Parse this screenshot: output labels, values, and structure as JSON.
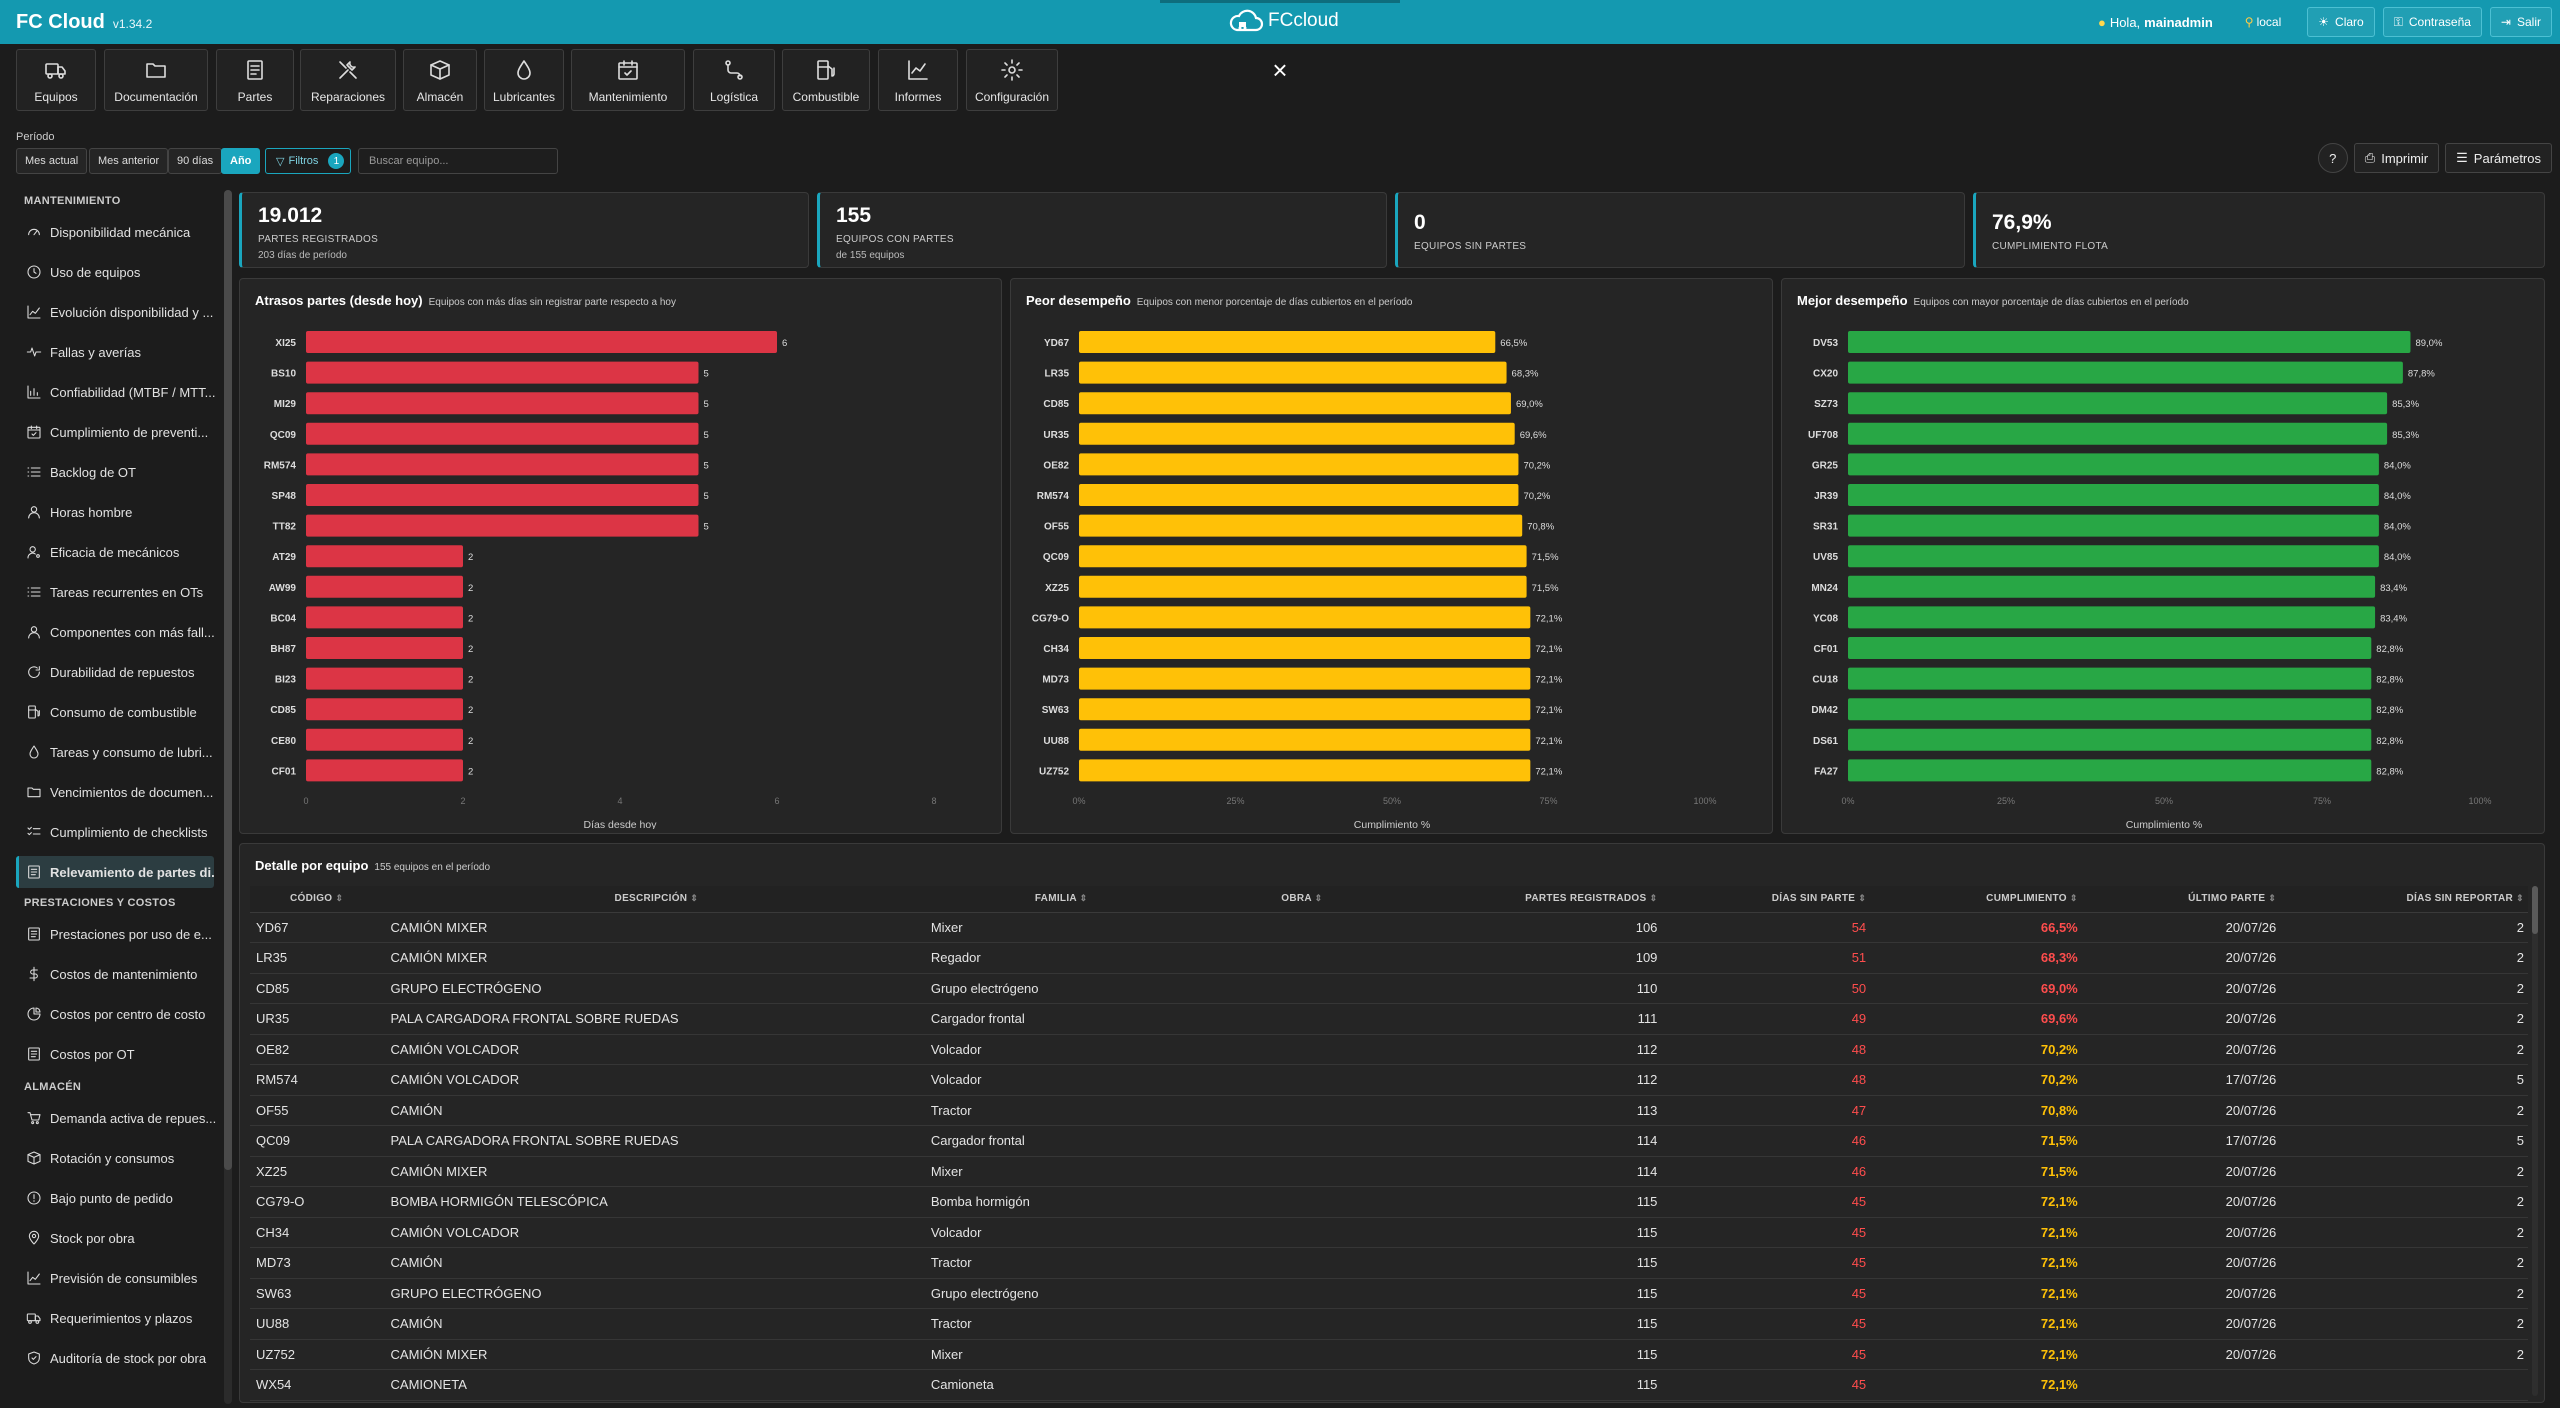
{
  "app": {
    "title": "FC Cloud",
    "version": "v1.34.2",
    "logo_text": "FCcloud",
    "greeting": "Hola,",
    "user": "mainadmin",
    "location": "local",
    "btn_theme": "Claro",
    "btn_password": "Contraseña",
    "btn_logout": "Salir"
  },
  "modules": [
    {
      "label": "Equipos",
      "icon": "truck-icon"
    },
    {
      "label": "Documentación",
      "icon": "folder-icon"
    },
    {
      "label": "Partes",
      "icon": "document-icon"
    },
    {
      "label": "Reparaciones",
      "icon": "tools-icon"
    },
    {
      "label": "Almacén",
      "icon": "box-icon"
    },
    {
      "label": "Lubricantes",
      "icon": "drop-icon"
    },
    {
      "label": "Mantenimiento",
      "icon": "calendar-check-icon"
    },
    {
      "label": "Logística",
      "icon": "route-icon"
    },
    {
      "label": "Combustible",
      "icon": "fuel-icon"
    },
    {
      "label": "Informes",
      "icon": "chart-line-icon"
    },
    {
      "label": "Configuración",
      "icon": "gear-icon"
    }
  ],
  "filters": {
    "period_label": "Período",
    "periods": [
      "Mes actual",
      "Mes anterior",
      "90 días",
      "Año"
    ],
    "active_period": "Año",
    "filters_label": "Filtros",
    "filters_count": "1",
    "search_placeholder": "Buscar equipo...",
    "help": "?",
    "print": "Imprimir",
    "params": "Parámetros"
  },
  "sidebar": [
    {
      "section": "MANTENIMIENTO",
      "items": [
        {
          "label": "Disponibilidad mecánica",
          "icon": "gauge-icon"
        },
        {
          "label": "Uso de equipos",
          "icon": "clock-icon"
        },
        {
          "label": "Evolución disponibilidad y ...",
          "icon": "trend-icon"
        },
        {
          "label": "Fallas y averías",
          "icon": "pulse-icon"
        },
        {
          "label": "Confiabilidad (MTBF / MTT...",
          "icon": "chart-icon"
        },
        {
          "label": "Cumplimiento de preventi...",
          "icon": "calendar-check-icon"
        },
        {
          "label": "Backlog de OT",
          "icon": "list-icon"
        },
        {
          "label": "Horas hombre",
          "icon": "user-icon"
        },
        {
          "label": "Eficacia de mecánicos",
          "icon": "user-gear-icon"
        },
        {
          "label": "Tareas recurrentes en OTs",
          "icon": "list-icon"
        },
        {
          "label": "Componentes con más fall...",
          "icon": "user-icon"
        },
        {
          "label": "Durabilidad de repuestos",
          "icon": "refresh-icon"
        },
        {
          "label": "Consumo de combustible",
          "icon": "fuel-icon"
        },
        {
          "label": "Tareas y consumo de lubri...",
          "icon": "drop-icon"
        },
        {
          "label": "Vencimientos de documen...",
          "icon": "folder-icon"
        },
        {
          "label": "Cumplimiento de checklists",
          "icon": "checklist-icon"
        },
        {
          "label": "Relevamiento de partes di...",
          "icon": "report-icon",
          "active": true
        }
      ]
    },
    {
      "section": "PRESTACIONES Y COSTOS",
      "items": [
        {
          "label": "Prestaciones por uso de e...",
          "icon": "report-icon"
        },
        {
          "label": "Costos de mantenimiento",
          "icon": "dollar-icon"
        },
        {
          "label": "Costos por centro de costo",
          "icon": "pie-icon"
        },
        {
          "label": "Costos por OT",
          "icon": "report-icon"
        }
      ]
    },
    {
      "section": "ALMACÉN",
      "items": [
        {
          "label": "Demanda activa de repues...",
          "icon": "cart-icon"
        },
        {
          "label": "Rotación y consumos",
          "icon": "box-icon"
        },
        {
          "label": "Bajo punto de pedido",
          "icon": "alert-icon"
        },
        {
          "label": "Stock por obra",
          "icon": "pin-icon"
        },
        {
          "label": "Previsión de consumibles",
          "icon": "trend-icon"
        },
        {
          "label": "Requerimientos y plazos",
          "icon": "truck-icon"
        },
        {
          "label": "Auditoría de stock por obra",
          "icon": "shield-icon"
        }
      ]
    }
  ],
  "kpis": [
    {
      "value": "19.012",
      "label": "PARTES REGISTRADOS",
      "sub": "203 días de período"
    },
    {
      "value": "155",
      "label": "EQUIPOS CON PARTES",
      "sub": "de 155 equipos"
    },
    {
      "value": "0",
      "label": "EQUIPOS SIN PARTES",
      "sub": ""
    },
    {
      "value": "76,9%",
      "label": "CUMPLIMIENTO FLOTA",
      "sub": ""
    }
  ],
  "chart_data": [
    {
      "type": "bar",
      "orientation": "horizontal",
      "title": "Atrasos partes (desde hoy)",
      "subtitle": "Equipos con más días sin registrar parte respecto a hoy",
      "xlabel": "Días desde hoy",
      "xlim": [
        0,
        8
      ],
      "xticks": [
        "0",
        "2",
        "4",
        "6",
        "8"
      ],
      "color": "#dc3545",
      "categories": [
        "XI25",
        "BS10",
        "MI29",
        "QC09",
        "RM574",
        "SP48",
        "TT82",
        "AT29",
        "AW99",
        "BC04",
        "BH87",
        "BI23",
        "CD85",
        "CE80",
        "CF01"
      ],
      "values": [
        6,
        5,
        5,
        5,
        5,
        5,
        5,
        2,
        2,
        2,
        2,
        2,
        2,
        2,
        2
      ],
      "labels": [
        "6",
        "5",
        "5",
        "5",
        "5",
        "5",
        "5",
        "2",
        "2",
        "2",
        "2",
        "2",
        "2",
        "2",
        "2"
      ]
    },
    {
      "type": "bar",
      "orientation": "horizontal",
      "title": "Peor desempeño",
      "subtitle": "Equipos con menor porcentaje de días cubiertos en el período",
      "xlabel": "Cumplimiento %",
      "xlim": [
        0,
        100
      ],
      "xticks": [
        "0%",
        "25%",
        "50%",
        "75%",
        "100%"
      ],
      "color": "#ffc107",
      "categories": [
        "YD67",
        "LR35",
        "CD85",
        "UR35",
        "OE82",
        "RM574",
        "OF55",
        "QC09",
        "XZ25",
        "CG79-O",
        "CH34",
        "MD73",
        "SW63",
        "UU88",
        "UZ752"
      ],
      "values": [
        66.5,
        68.3,
        69.0,
        69.6,
        70.2,
        70.2,
        70.8,
        71.5,
        71.5,
        72.1,
        72.1,
        72.1,
        72.1,
        72.1,
        72.1
      ],
      "labels": [
        "66,5%",
        "68,3%",
        "69,0%",
        "69,6%",
        "70,2%",
        "70,2%",
        "70,8%",
        "71,5%",
        "71,5%",
        "72,1%",
        "72,1%",
        "72,1%",
        "72,1%",
        "72,1%",
        "72,1%"
      ]
    },
    {
      "type": "bar",
      "orientation": "horizontal",
      "title": "Mejor desempeño",
      "subtitle": "Equipos con mayor porcentaje de días cubiertos en el período",
      "xlabel": "Cumplimiento %",
      "xlim": [
        0,
        100
      ],
      "xticks": [
        "0%",
        "25%",
        "50%",
        "75%",
        "100%"
      ],
      "color": "#28a745",
      "categories": [
        "DV53",
        "CX20",
        "SZ73",
        "UF708",
        "GR25",
        "JR39",
        "SR31",
        "UV85",
        "MN24",
        "YC08",
        "CF01",
        "CU18",
        "DM42",
        "DS61",
        "FA27"
      ],
      "values": [
        89.0,
        87.8,
        85.3,
        85.3,
        84.0,
        84.0,
        84.0,
        84.0,
        83.4,
        83.4,
        82.8,
        82.8,
        82.8,
        82.8,
        82.8
      ],
      "labels": [
        "89,0%",
        "87,8%",
        "85,3%",
        "85,3%",
        "84,0%",
        "84,0%",
        "84,0%",
        "84,0%",
        "83,4%",
        "83,4%",
        "82,8%",
        "82,8%",
        "82,8%",
        "82,8%",
        "82,8%"
      ]
    }
  ],
  "table": {
    "title": "Detalle por equipo",
    "subtitle": "155 equipos en el período",
    "columns": [
      "CÓDIGO",
      "DESCRIPCIÓN",
      "FAMILIA",
      "OBRA",
      "PARTES REGISTRADOS",
      "DÍAS SIN PARTE",
      "CUMPLIMIENTO",
      "ÚLTIMO PARTE",
      "DÍAS SIN REPORTAR"
    ],
    "sort_icon": "⇕",
    "rows": [
      [
        "YD67",
        "CAMIÓN MIXER",
        "Mixer",
        "",
        "106",
        "54",
        "66,5%",
        "20/07/26",
        "2"
      ],
      [
        "LR35",
        "CAMIÓN MIXER",
        "Regador",
        "",
        "109",
        "51",
        "68,3%",
        "20/07/26",
        "2"
      ],
      [
        "CD85",
        "GRUPO ELECTRÓGENO",
        "Grupo electrógeno",
        "",
        "110",
        "50",
        "69,0%",
        "20/07/26",
        "2"
      ],
      [
        "UR35",
        "PALA CARGADORA FRONTAL SOBRE RUEDAS",
        "Cargador frontal",
        "",
        "111",
        "49",
        "69,6%",
        "20/07/26",
        "2"
      ],
      [
        "OE82",
        "CAMIÓN VOLCADOR",
        "Volcador",
        "",
        "112",
        "48",
        "70,2%",
        "20/07/26",
        "2"
      ],
      [
        "RM574",
        "CAMIÓN VOLCADOR",
        "Volcador",
        "",
        "112",
        "48",
        "70,2%",
        "17/07/26",
        "5"
      ],
      [
        "OF55",
        "CAMIÓN",
        "Tractor",
        "",
        "113",
        "47",
        "70,8%",
        "20/07/26",
        "2"
      ],
      [
        "QC09",
        "PALA CARGADORA FRONTAL SOBRE RUEDAS",
        "Cargador frontal",
        "",
        "114",
        "46",
        "71,5%",
        "17/07/26",
        "5"
      ],
      [
        "XZ25",
        "CAMIÓN MIXER",
        "Mixer",
        "",
        "114",
        "46",
        "71,5%",
        "20/07/26",
        "2"
      ],
      [
        "CG79-O",
        "BOMBA HORMIGÓN TELESCÓPICA",
        "Bomba hormigón",
        "",
        "115",
        "45",
        "72,1%",
        "20/07/26",
        "2"
      ],
      [
        "CH34",
        "CAMIÓN VOLCADOR",
        "Volcador",
        "",
        "115",
        "45",
        "72,1%",
        "20/07/26",
        "2"
      ],
      [
        "MD73",
        "CAMIÓN",
        "Tractor",
        "",
        "115",
        "45",
        "72,1%",
        "20/07/26",
        "2"
      ],
      [
        "SW63",
        "GRUPO ELECTRÓGENO",
        "Grupo electrógeno",
        "",
        "115",
        "45",
        "72,1%",
        "20/07/26",
        "2"
      ],
      [
        "UU88",
        "CAMIÓN",
        "Tractor",
        "",
        "115",
        "45",
        "72,1%",
        "20/07/26",
        "2"
      ],
      [
        "UZ752",
        "CAMIÓN MIXER",
        "Mixer",
        "",
        "115",
        "45",
        "72,1%",
        "20/07/26",
        "2"
      ],
      [
        "WX54",
        "CAMIONETA",
        "Camioneta",
        "",
        "115",
        "45",
        "72,1%",
        "",
        ""
      ]
    ]
  },
  "colors": {
    "accent": "#1aa6be",
    "red": "#dc3545",
    "yellow": "#ffc107",
    "green": "#28a745",
    "red_text": "#ff4d4d"
  }
}
